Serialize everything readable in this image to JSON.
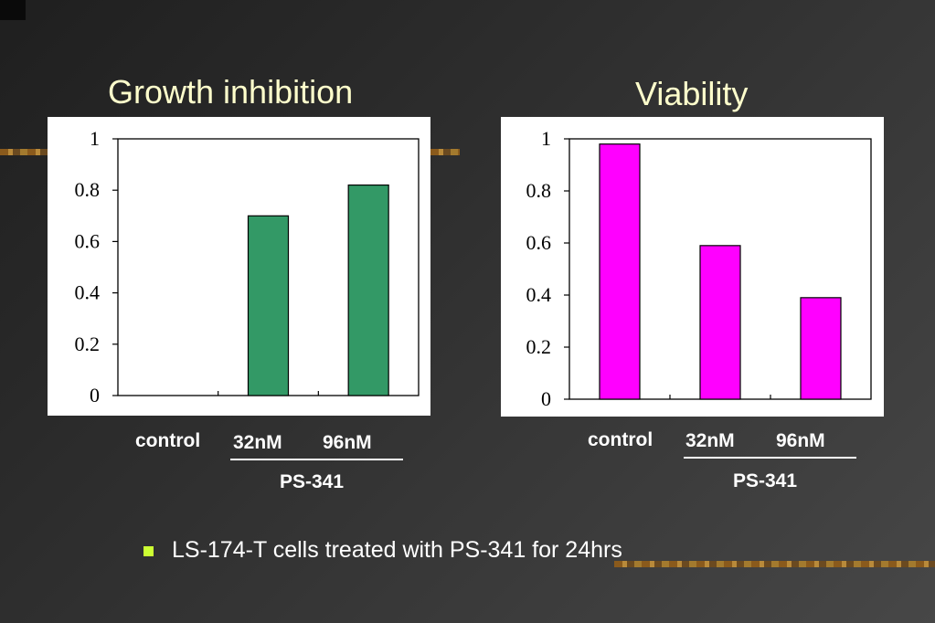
{
  "slide": {
    "bullet_text": "LS-174-T cells treated with PS-341 for 24hrs",
    "accent_title": "#ffffcc",
    "bullet_color": "#ccff33"
  },
  "chart_data": [
    {
      "type": "bar",
      "title": "Growth inhibition",
      "categories": [
        "control",
        "32nM",
        "96nM"
      ],
      "values": [
        0,
        0.7,
        0.82
      ],
      "yticks": [
        "0",
        "0.2",
        "0.4",
        "0.6",
        "0.8",
        "1"
      ],
      "ylim": [
        0,
        1
      ],
      "group_label": "PS-341",
      "bar_color": "#339966",
      "legend": "none",
      "grid": false
    },
    {
      "type": "bar",
      "title": "Viability",
      "categories": [
        "control",
        "32nM",
        "96nM"
      ],
      "values": [
        0.98,
        0.59,
        0.39
      ],
      "yticks": [
        "0",
        "0.2",
        "0.4",
        "0.6",
        "0.8",
        "1"
      ],
      "ylim": [
        0,
        1
      ],
      "group_label": "PS-341",
      "bar_color": "#ff00ff",
      "legend": "none",
      "grid": false
    }
  ]
}
